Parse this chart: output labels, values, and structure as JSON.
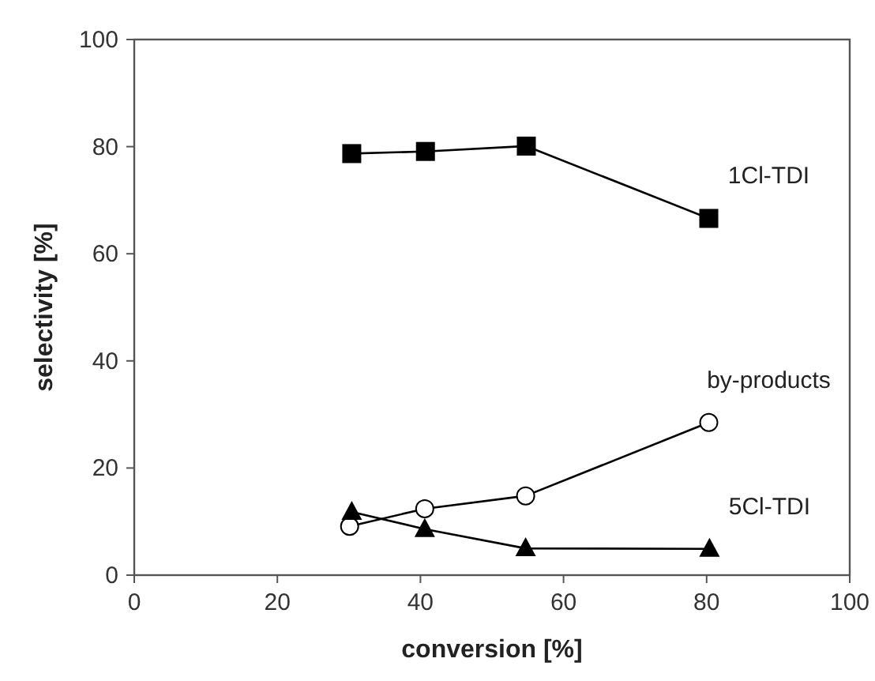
{
  "chart_data": {
    "type": "line",
    "xlabel": "conversion [%]",
    "ylabel": "selectivity [%]",
    "x": [
      30.4,
      40.7,
      54.8,
      80.3
    ],
    "xlim": [
      0,
      100
    ],
    "xticks": [
      0,
      20,
      40,
      60,
      80,
      100
    ],
    "ylim": [
      0,
      100
    ],
    "yticks": [
      0,
      20,
      40,
      60,
      80,
      100
    ],
    "grid": false,
    "line_style": "solid",
    "series": [
      {
        "name": "1Cl-TDI",
        "color": "#000000",
        "marker": "square",
        "values": [
          78.7,
          79.1,
          80.1,
          66.6
        ]
      },
      {
        "name": "by-products",
        "color": "#000000",
        "marker": "circle",
        "x": [
          30.1,
          40.6,
          54.7,
          80.3
        ],
        "values": [
          9.1,
          12.4,
          14.8,
          28.5
        ]
      },
      {
        "name": "5Cl-TDI",
        "color": "#000000",
        "marker": "triangle",
        "x": [
          30.4,
          40.6,
          54.7,
          80.4
        ],
        "values": [
          11.8,
          8.6,
          5.0,
          4.9
        ]
      }
    ]
  }
}
